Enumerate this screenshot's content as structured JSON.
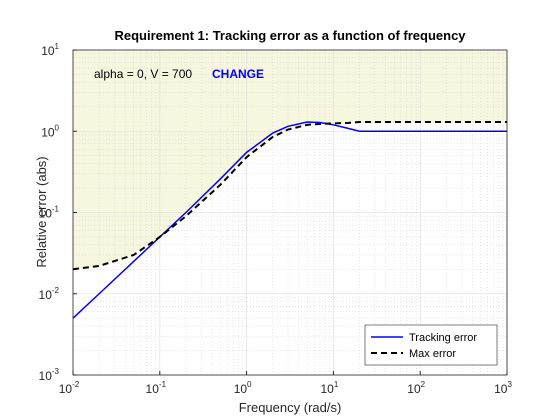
{
  "chart_data": {
    "type": "line",
    "title": "Requirement 1: Tracking error as a function of frequency",
    "xlabel": "Frequency (rad/s)",
    "ylabel": "Relative error (abs)",
    "annotation": "alpha = 0, V = 700",
    "button": "CHANGE",
    "log_x": true,
    "log_y": true,
    "grid": true,
    "minor_grid": true,
    "legend_loc": "lower right",
    "shade_color": "#f7f7e0",
    "x": [
      0.01,
      0.02,
      0.05,
      0.1,
      0.2,
      0.5,
      1,
      2,
      3,
      5,
      7,
      10,
      15,
      20,
      50,
      100,
      1000
    ],
    "series": [
      {
        "name": "Tracking error",
        "color": "#0000ff",
        "dash": false,
        "values": [
          0.005,
          0.01,
          0.025,
          0.05,
          0.1,
          0.26,
          0.55,
          0.95,
          1.15,
          1.3,
          1.28,
          1.2,
          1.08,
          1.0,
          1.0,
          1.0,
          1.0
        ]
      },
      {
        "name": "Max error",
        "color": "#000000",
        "dash": true,
        "shade_above": true,
        "values": [
          0.02,
          0.022,
          0.03,
          0.05,
          0.09,
          0.22,
          0.48,
          0.85,
          1.05,
          1.2,
          1.23,
          1.25,
          1.27,
          1.3,
          1.3,
          1.3,
          1.3
        ]
      }
    ],
    "xlim": [
      0.01,
      1000
    ],
    "ylim": [
      0.001,
      10
    ],
    "xticks": [
      {
        "value": 0.01,
        "label": "10",
        "exp": "-2"
      },
      {
        "value": 0.1,
        "label": "10",
        "exp": "-1"
      },
      {
        "value": 1,
        "label": "10",
        "exp": "0"
      },
      {
        "value": 10,
        "label": "10",
        "exp": "1"
      },
      {
        "value": 100,
        "label": "10",
        "exp": "2"
      },
      {
        "value": 1000,
        "label": "10",
        "exp": "3"
      }
    ],
    "yticks": [
      {
        "value": 0.001,
        "label": "10",
        "exp": "-3"
      },
      {
        "value": 0.01,
        "label": "10",
        "exp": "-2"
      },
      {
        "value": 0.1,
        "label": "10",
        "exp": "-1"
      },
      {
        "value": 1,
        "label": "10",
        "exp": "0"
      },
      {
        "value": 10,
        "label": "10",
        "exp": "1"
      }
    ]
  }
}
